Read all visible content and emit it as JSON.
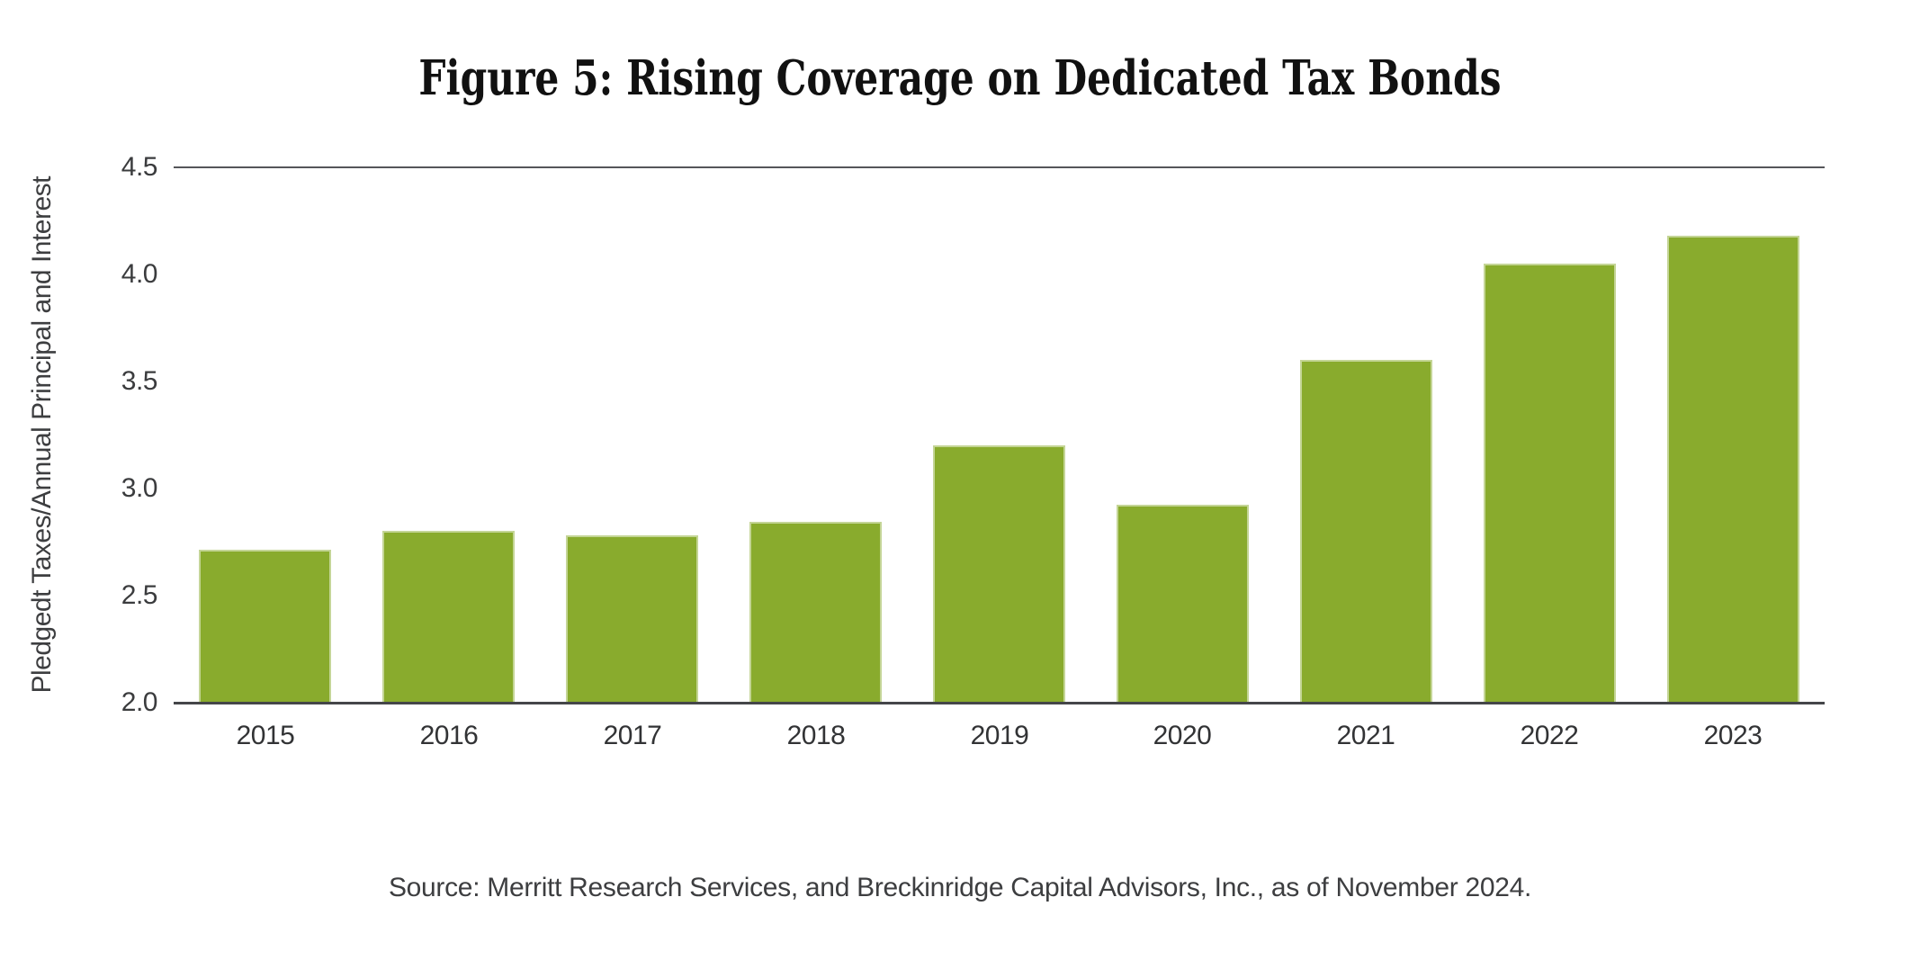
{
  "title": "Figure 5: Rising Coverage on Dedicated Tax Bonds",
  "source": "Source: Merritt Research Services, and Breckinridge Capital Advisors, Inc., as of November 2024.",
  "colors": {
    "bar_fill": "#89ab2d",
    "bar_edge": "rgba(255,255,255,0.5)",
    "top_gridline": "#55565a",
    "baseline": "#454649",
    "text": "#3b3c3e",
    "title_text": "#111111",
    "background": "#ffffff"
  },
  "chart_data": {
    "type": "bar",
    "title": "Figure 5: Rising Coverage on Dedicated Tax Bonds",
    "xlabel": "",
    "ylabel": "Pledgedt Taxes/Annual Principal and Interest",
    "categories": [
      "2015",
      "2016",
      "2017",
      "2018",
      "2019",
      "2020",
      "2021",
      "2022",
      "2023"
    ],
    "values": [
      2.71,
      2.8,
      2.78,
      2.84,
      3.2,
      2.92,
      3.6,
      4.05,
      4.18
    ],
    "ylim": [
      2.0,
      4.5
    ],
    "ytick_labels": [
      "4.5",
      "4.0",
      "3.5",
      "3.0",
      "2.5",
      "2.0"
    ],
    "ytick_values": [
      4.5,
      4.0,
      3.5,
      3.0,
      2.5,
      2.0
    ],
    "grid": false,
    "legend": "none",
    "source_note": "Source: Merritt Research Services, and Breckinridge Capital Advisors, Inc., as of November 2024."
  }
}
